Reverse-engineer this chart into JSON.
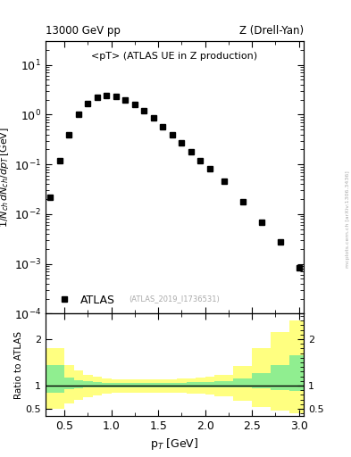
{
  "title_left": "13000 GeV pp",
  "title_right": "Z (Drell-Yan)",
  "plot_title": "<pT> (ATLAS UE in Z production)",
  "watermark": "(ATLAS_2019_I1736531)",
  "ylabel_main": "1/N$_{ch}$ dN$_{ch}$/dp$_T$ [GeV]",
  "ylabel_ratio": "Ratio to ATLAS",
  "xlabel": "p$_T$ [GeV]",
  "sidebar_text": "mcplots.cern.ch [arXiv:1306.3436]",
  "data_x": [
    0.35,
    0.45,
    0.55,
    0.65,
    0.75,
    0.85,
    0.95,
    1.05,
    1.15,
    1.25,
    1.35,
    1.45,
    1.55,
    1.65,
    1.75,
    1.85,
    1.95,
    2.05,
    2.2,
    2.4,
    2.6,
    2.8,
    3.0
  ],
  "data_y": [
    0.022,
    0.12,
    0.4,
    1.0,
    1.7,
    2.2,
    2.4,
    2.3,
    2.0,
    1.6,
    1.2,
    0.85,
    0.58,
    0.4,
    0.27,
    0.18,
    0.12,
    0.082,
    0.046,
    0.018,
    0.007,
    0.0028,
    0.00085
  ],
  "ratio_x_edges": [
    0.3,
    0.5,
    0.6,
    0.7,
    0.8,
    0.9,
    1.0,
    1.1,
    1.2,
    1.3,
    1.4,
    1.5,
    1.6,
    1.7,
    1.8,
    1.9,
    2.0,
    2.1,
    2.3,
    2.5,
    2.7,
    2.9,
    3.05
  ],
  "ratio_green_lo": [
    0.85,
    0.93,
    0.95,
    0.96,
    0.97,
    0.97,
    0.97,
    0.97,
    0.97,
    0.97,
    0.97,
    0.97,
    0.97,
    0.97,
    0.97,
    0.97,
    0.97,
    0.97,
    0.96,
    0.94,
    0.91,
    0.88
  ],
  "ratio_green_hi": [
    1.45,
    1.18,
    1.12,
    1.09,
    1.07,
    1.06,
    1.05,
    1.05,
    1.05,
    1.05,
    1.05,
    1.05,
    1.05,
    1.06,
    1.07,
    1.07,
    1.08,
    1.1,
    1.15,
    1.28,
    1.45,
    1.65
  ],
  "ratio_yellow_lo": [
    0.5,
    0.62,
    0.7,
    0.75,
    0.79,
    0.82,
    0.84,
    0.85,
    0.85,
    0.85,
    0.85,
    0.85,
    0.84,
    0.84,
    0.83,
    0.82,
    0.81,
    0.78,
    0.68,
    0.55,
    0.46,
    0.4
  ],
  "ratio_yellow_hi": [
    1.8,
    1.45,
    1.32,
    1.24,
    1.19,
    1.16,
    1.14,
    1.13,
    1.13,
    1.13,
    1.13,
    1.13,
    1.14,
    1.15,
    1.16,
    1.17,
    1.19,
    1.24,
    1.42,
    1.8,
    2.15,
    2.4
  ],
  "xlim": [
    0.3,
    3.05
  ],
  "ylim_main_lo": 0.0001,
  "ylim_main_hi": 30,
  "ylim_ratio_lo": 0.35,
  "ylim_ratio_hi": 2.55,
  "marker_color": "black",
  "marker_size": 4,
  "green_color": "#90ee90",
  "yellow_color": "#ffff80",
  "line_color": "black",
  "bg_color": "#ffffff"
}
